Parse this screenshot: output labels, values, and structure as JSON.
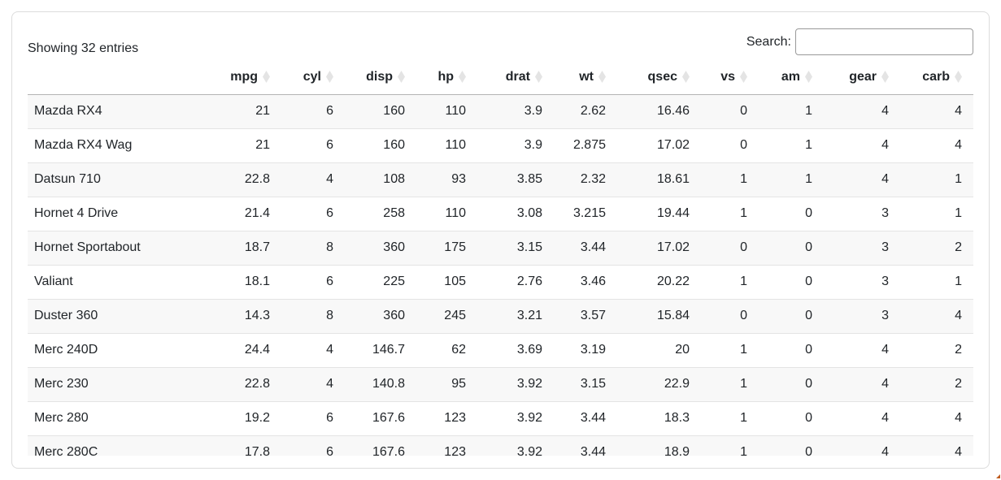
{
  "info": {
    "text": "Showing 32 entries"
  },
  "search": {
    "label": "Search:",
    "value": ""
  },
  "icons": {
    "column_sort": "sort-diamond-icon"
  },
  "colors": {
    "text": "#212529",
    "stripe": "#f8f8f8",
    "row_border": "#e4e4e4",
    "header_border": "#b3b3b3",
    "card_border": "#dcdcdc",
    "sort_icon": "#e4e4e4",
    "corner_artifact": "#bf5b1d"
  },
  "table": {
    "columns": [
      "",
      "mpg",
      "cyl",
      "disp",
      "hp",
      "drat",
      "wt",
      "qsec",
      "vs",
      "am",
      "gear",
      "carb"
    ],
    "rows": [
      [
        "Mazda RX4",
        21,
        6,
        160,
        110,
        3.9,
        2.62,
        16.46,
        0,
        1,
        4,
        4
      ],
      [
        "Mazda RX4 Wag",
        21,
        6,
        160,
        110,
        3.9,
        2.875,
        17.02,
        0,
        1,
        4,
        4
      ],
      [
        "Datsun 710",
        22.8,
        4,
        108,
        93,
        3.85,
        2.32,
        18.61,
        1,
        1,
        4,
        1
      ],
      [
        "Hornet 4 Drive",
        21.4,
        6,
        258,
        110,
        3.08,
        3.215,
        19.44,
        1,
        0,
        3,
        1
      ],
      [
        "Hornet Sportabout",
        18.7,
        8,
        360,
        175,
        3.15,
        3.44,
        17.02,
        0,
        0,
        3,
        2
      ],
      [
        "Valiant",
        18.1,
        6,
        225,
        105,
        2.76,
        3.46,
        20.22,
        1,
        0,
        3,
        1
      ],
      [
        "Duster 360",
        14.3,
        8,
        360,
        245,
        3.21,
        3.57,
        15.84,
        0,
        0,
        3,
        4
      ],
      [
        "Merc 240D",
        24.4,
        4,
        146.7,
        62,
        3.69,
        3.19,
        20,
        1,
        0,
        4,
        2
      ],
      [
        "Merc 230",
        22.8,
        4,
        140.8,
        95,
        3.92,
        3.15,
        22.9,
        1,
        0,
        4,
        2
      ],
      [
        "Merc 280",
        19.2,
        6,
        167.6,
        123,
        3.92,
        3.44,
        18.3,
        1,
        0,
        4,
        4
      ],
      [
        "Merc 280C",
        17.8,
        6,
        167.6,
        123,
        3.92,
        3.44,
        18.9,
        1,
        0,
        4,
        4
      ]
    ]
  }
}
